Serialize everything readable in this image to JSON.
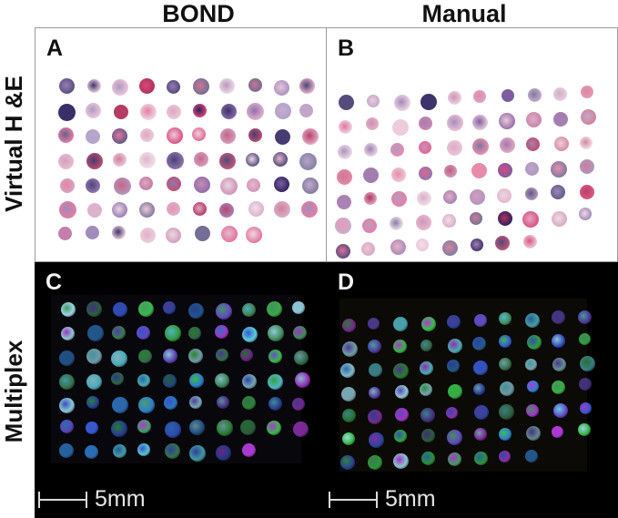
{
  "columns": {
    "left": "BOND",
    "right": "Manual"
  },
  "rows": {
    "top": "Virtual H &E",
    "bottom": "Multiplex"
  },
  "panels": {
    "A": {
      "letter": "A",
      "stain": "he"
    },
    "B": {
      "letter": "B",
      "stain": "he"
    },
    "C": {
      "letter": "C",
      "stain": "multiplex"
    },
    "D": {
      "letter": "D",
      "stain": "multiplex"
    }
  },
  "scalebars": [
    {
      "label": "5mm"
    },
    {
      "label": "5mm"
    }
  ],
  "colors": {
    "he_pink": "#d9477a",
    "he_purple": "#7a5a9e",
    "he_dark": "#2b1f5c",
    "he_light": "#e7c9d9",
    "mx_blue": "#3a5bd9",
    "mx_green": "#3bbf4a",
    "mx_magenta": "#b03ad9",
    "mx_cyan": "#5fd6e6"
  },
  "grid": {
    "rows": 7,
    "cols": 10
  }
}
